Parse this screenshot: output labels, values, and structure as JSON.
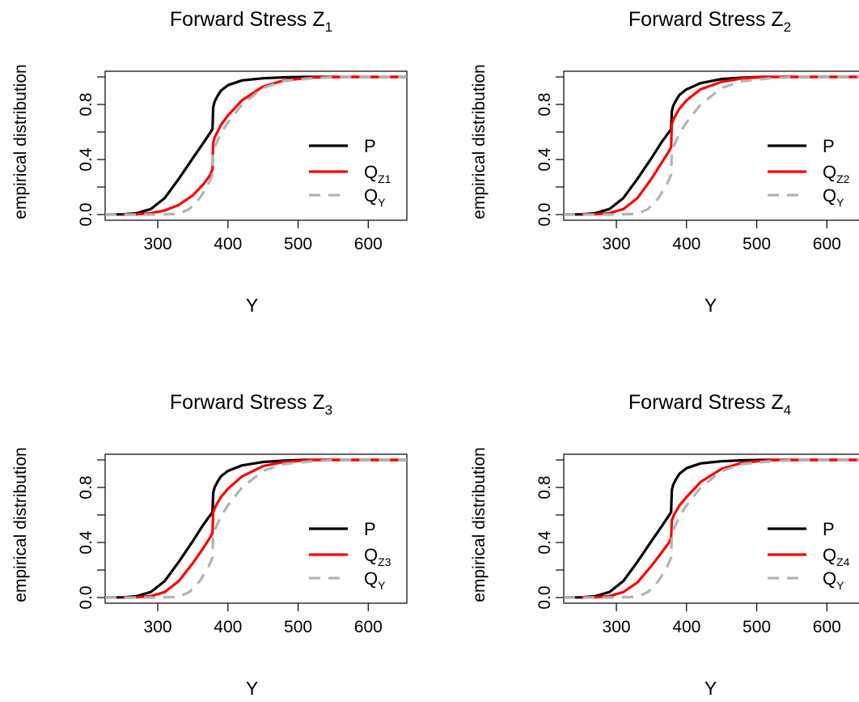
{
  "chart_data": [
    {
      "type": "line",
      "title": "Forward Stress Z",
      "title_sub": "1",
      "xlabel": "Y",
      "ylabel": "empirical distribution",
      "xlim": [
        225,
        655
      ],
      "ylim": [
        0,
        1
      ],
      "x_ticks": [
        300,
        400,
        500,
        600
      ],
      "y_ticks": [
        0.0,
        0.4,
        0.8
      ],
      "y_tick_labels": [
        "0.0",
        "0.4",
        "0.8"
      ],
      "legend_position": "right",
      "series": [
        {
          "name": "P",
          "color": "#000000",
          "dash": "solid",
          "x": [
            225,
            250,
            270,
            290,
            310,
            330,
            350,
            365,
            378,
            379,
            381,
            385,
            390,
            400,
            420,
            450,
            480,
            510,
            550,
            600,
            655
          ],
          "y": [
            0,
            0.002,
            0.01,
            0.04,
            0.12,
            0.26,
            0.41,
            0.52,
            0.62,
            0.78,
            0.82,
            0.86,
            0.9,
            0.94,
            0.975,
            0.99,
            0.997,
            1,
            1,
            1,
            1
          ]
        },
        {
          "name": "Q",
          "name_sub": "Z1",
          "color": "#ff0000",
          "dash": "solid",
          "x": [
            250,
            270,
            290,
            310,
            330,
            350,
            365,
            375,
            378,
            379,
            381,
            385,
            390,
            400,
            420,
            450,
            480,
            520,
            560,
            600,
            655
          ],
          "y": [
            0,
            0.002,
            0.01,
            0.03,
            0.07,
            0.14,
            0.22,
            0.29,
            0.33,
            0.52,
            0.56,
            0.6,
            0.65,
            0.72,
            0.83,
            0.93,
            0.975,
            0.995,
            1,
            1,
            1
          ]
        },
        {
          "name": "Q",
          "name_sub": "Y",
          "color": "#b3b3b3",
          "dash": "dashed",
          "x": [
            225,
            300,
            330,
            345,
            360,
            372,
            378,
            379,
            382,
            390,
            400,
            420,
            450,
            480,
            520,
            560,
            600,
            655
          ],
          "y": [
            0,
            0,
            0.005,
            0.04,
            0.12,
            0.22,
            0.29,
            0.45,
            0.5,
            0.59,
            0.67,
            0.8,
            0.92,
            0.97,
            0.99,
            1,
            1,
            1
          ]
        }
      ]
    },
    {
      "type": "line",
      "title": "Forward Stress Z",
      "title_sub": "2",
      "xlabel": "Y",
      "ylabel": "empirical distribution",
      "xlim": [
        225,
        655
      ],
      "ylim": [
        0,
        1
      ],
      "x_ticks": [
        300,
        400,
        500,
        600
      ],
      "y_ticks": [
        0.0,
        0.4,
        0.8
      ],
      "y_tick_labels": [
        "0.0",
        "0.4",
        "0.8"
      ],
      "legend_position": "right",
      "series": [
        {
          "name": "P",
          "color": "#000000",
          "dash": "solid",
          "x": [
            225,
            250,
            270,
            290,
            310,
            330,
            350,
            365,
            378,
            379,
            381,
            385,
            390,
            400,
            420,
            450,
            480,
            510,
            550,
            600,
            655
          ],
          "y": [
            0,
            0.002,
            0.01,
            0.04,
            0.12,
            0.26,
            0.41,
            0.53,
            0.62,
            0.75,
            0.79,
            0.83,
            0.87,
            0.91,
            0.955,
            0.985,
            0.995,
            1,
            1,
            1,
            1
          ]
        },
        {
          "name": "Q",
          "name_sub": "Z2",
          "color": "#ff0000",
          "dash": "solid",
          "x": [
            250,
            270,
            290,
            310,
            330,
            350,
            365,
            375,
            378,
            379,
            382,
            390,
            400,
            420,
            450,
            480,
            520,
            560,
            600,
            655
          ],
          "y": [
            0,
            0.002,
            0.01,
            0.04,
            0.12,
            0.26,
            0.38,
            0.46,
            0.49,
            0.66,
            0.7,
            0.77,
            0.83,
            0.91,
            0.965,
            0.99,
            1,
            1,
            1,
            1
          ]
        },
        {
          "name": "Q",
          "name_sub": "Y",
          "color": "#b3b3b3",
          "dash": "dashed",
          "x": [
            225,
            300,
            330,
            345,
            360,
            372,
            378,
            379,
            382,
            390,
            400,
            420,
            450,
            480,
            520,
            560,
            600,
            655
          ],
          "y": [
            0,
            0,
            0.005,
            0.04,
            0.12,
            0.22,
            0.29,
            0.45,
            0.5,
            0.59,
            0.67,
            0.8,
            0.92,
            0.97,
            0.99,
            1,
            1,
            1
          ]
        }
      ]
    },
    {
      "type": "line",
      "title": "Forward Stress Z",
      "title_sub": "3",
      "xlabel": "Y",
      "ylabel": "empirical distribution",
      "xlim": [
        225,
        655
      ],
      "ylim": [
        0,
        1
      ],
      "x_ticks": [
        300,
        400,
        500,
        600
      ],
      "y_ticks": [
        0.0,
        0.4,
        0.8
      ],
      "y_tick_labels": [
        "0.0",
        "0.4",
        "0.8"
      ],
      "legend_position": "right",
      "series": [
        {
          "name": "P",
          "color": "#000000",
          "dash": "solid",
          "x": [
            225,
            250,
            270,
            290,
            310,
            330,
            350,
            365,
            378,
            379,
            381,
            385,
            390,
            400,
            420,
            450,
            480,
            510,
            550,
            600,
            655
          ],
          "y": [
            0,
            0.002,
            0.01,
            0.04,
            0.12,
            0.26,
            0.41,
            0.53,
            0.62,
            0.76,
            0.8,
            0.84,
            0.88,
            0.92,
            0.96,
            0.985,
            0.995,
            1,
            1,
            1,
            1
          ]
        },
        {
          "name": "Q",
          "name_sub": "Z3",
          "color": "#ff0000",
          "dash": "solid",
          "x": [
            250,
            270,
            290,
            310,
            330,
            350,
            365,
            375,
            378,
            379,
            382,
            390,
            400,
            420,
            450,
            480,
            520,
            560,
            600,
            655
          ],
          "y": [
            0,
            0.002,
            0.01,
            0.04,
            0.12,
            0.25,
            0.36,
            0.44,
            0.47,
            0.62,
            0.66,
            0.73,
            0.79,
            0.88,
            0.955,
            0.985,
            1,
            1,
            1,
            1
          ]
        },
        {
          "name": "Q",
          "name_sub": "Y",
          "color": "#b3b3b3",
          "dash": "dashed",
          "x": [
            225,
            300,
            330,
            345,
            360,
            372,
            378,
            379,
            382,
            390,
            400,
            420,
            450,
            480,
            520,
            560,
            600,
            655
          ],
          "y": [
            0,
            0,
            0.005,
            0.04,
            0.12,
            0.22,
            0.29,
            0.45,
            0.5,
            0.59,
            0.67,
            0.8,
            0.92,
            0.97,
            0.99,
            1,
            1,
            1
          ]
        }
      ]
    },
    {
      "type": "line",
      "title": "Forward Stress Z",
      "title_sub": "4",
      "xlabel": "Y",
      "ylabel": "empirical distribution",
      "xlim": [
        225,
        655
      ],
      "ylim": [
        0,
        1
      ],
      "x_ticks": [
        300,
        400,
        500,
        600
      ],
      "y_ticks": [
        0.0,
        0.4,
        0.8
      ],
      "y_tick_labels": [
        "0.0",
        "0.4",
        "0.8"
      ],
      "legend_position": "right",
      "series": [
        {
          "name": "P",
          "color": "#000000",
          "dash": "solid",
          "x": [
            225,
            250,
            270,
            290,
            310,
            330,
            350,
            365,
            378,
            379,
            381,
            385,
            390,
            400,
            420,
            450,
            480,
            510,
            550,
            600,
            655
          ],
          "y": [
            0,
            0.002,
            0.01,
            0.04,
            0.12,
            0.26,
            0.41,
            0.52,
            0.62,
            0.78,
            0.82,
            0.86,
            0.9,
            0.94,
            0.975,
            0.99,
            0.997,
            1,
            1,
            1,
            1
          ]
        },
        {
          "name": "Q",
          "name_sub": "Z4",
          "color": "#ff0000",
          "dash": "solid",
          "x": [
            250,
            270,
            290,
            310,
            330,
            350,
            365,
            375,
            378,
            379,
            382,
            390,
            400,
            420,
            450,
            480,
            520,
            560,
            600,
            655
          ],
          "y": [
            0,
            0.002,
            0.01,
            0.04,
            0.11,
            0.23,
            0.33,
            0.4,
            0.43,
            0.56,
            0.6,
            0.67,
            0.73,
            0.84,
            0.935,
            0.98,
            0.998,
            1,
            1,
            1
          ]
        },
        {
          "name": "Q",
          "name_sub": "Y",
          "color": "#b3b3b3",
          "dash": "dashed",
          "x": [
            225,
            300,
            330,
            345,
            360,
            372,
            378,
            379,
            382,
            390,
            400,
            420,
            450,
            480,
            520,
            560,
            600,
            655
          ],
          "y": [
            0,
            0,
            0.005,
            0.04,
            0.12,
            0.22,
            0.29,
            0.45,
            0.5,
            0.59,
            0.67,
            0.8,
            0.92,
            0.97,
            0.99,
            1,
            1,
            1
          ]
        }
      ]
    }
  ]
}
